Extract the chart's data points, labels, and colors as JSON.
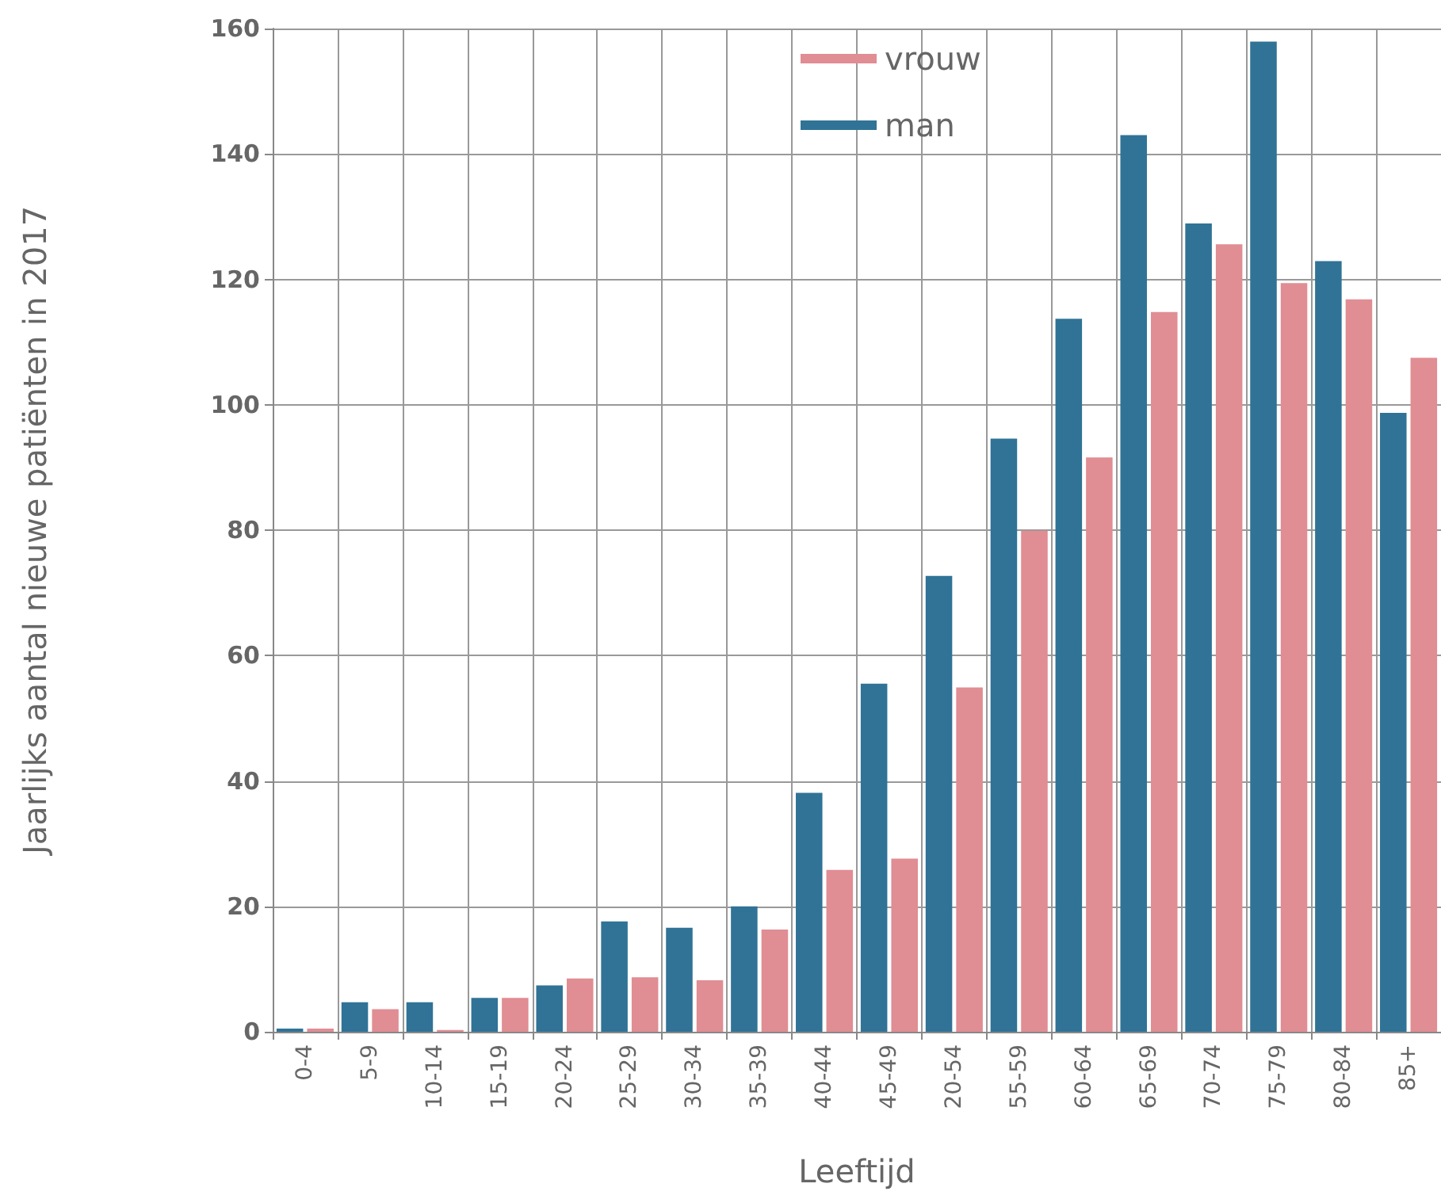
{
  "chart_data": {
    "type": "bar",
    "xlabel": "Leeftijd",
    "ylabel": "Jaarlijks aantal nieuwe patiënten in 2017",
    "categories": [
      "0-4",
      "5-9",
      "10-14",
      "15-19",
      "20-24",
      "25-29",
      "30-34",
      "35-39",
      "40-44",
      "45-49",
      "20-54",
      "55-59",
      "60-64",
      "65-69",
      "70-74",
      "75-79",
      "80-84",
      "85+"
    ],
    "series": [
      {
        "name": "man",
        "color": "#307396",
        "values": [
          0.5,
          4.7,
          4.7,
          5.4,
          7.4,
          17.6,
          16.6,
          20,
          38.1,
          55.5,
          72.7,
          94.6,
          113.7,
          143,
          128.9,
          157.9,
          122.9,
          98.7
        ]
      },
      {
        "name": "vrouw",
        "color": "#e08d93",
        "values": [
          0.5,
          3.6,
          0.3,
          5.4,
          8.5,
          8.7,
          8.2,
          16.3,
          25.8,
          27.6,
          54.9,
          79.9,
          91.6,
          114.8,
          125.6,
          119.4,
          116.8,
          107.5
        ]
      }
    ],
    "ylim": [
      0,
      160
    ],
    "yticks": [
      0,
      20,
      40,
      60,
      80,
      100,
      120,
      140,
      160
    ],
    "grid": true,
    "legend": "top"
  }
}
